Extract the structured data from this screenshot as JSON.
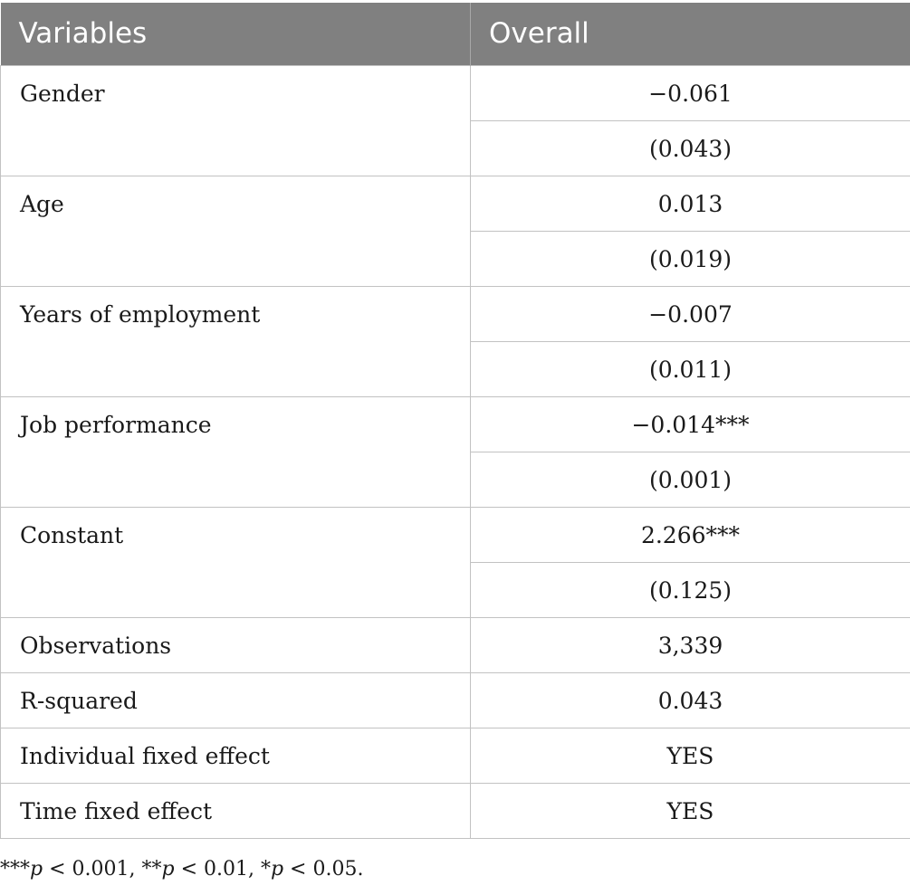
{
  "header": {
    "col1": "Variables",
    "col2": "Overall"
  },
  "rows": [
    {
      "label": "Gender",
      "coef": "−0.061",
      "se": "(0.043)"
    },
    {
      "label": "Age",
      "coef": "0.013",
      "se": "(0.019)"
    },
    {
      "label": "Years of employment",
      "coef": "−0.007",
      "se": "(0.011)"
    },
    {
      "label": "Job performance",
      "coef": "−0.014***",
      "se": "(0.001)"
    },
    {
      "label": "Constant",
      "coef": "2.266***",
      "se": "(0.125)"
    }
  ],
  "stats": [
    {
      "label": "Observations",
      "value": "3,339"
    },
    {
      "label": "R-squared",
      "value": "0.043"
    },
    {
      "label": "Individual fixed effect",
      "value": "YES"
    },
    {
      "label": "Time fixed effect",
      "value": "YES"
    }
  ],
  "footnote": {
    "p1_stars": "***",
    "p1_text": " < 0.001, ",
    "p2_stars": "**",
    "p2_text": " < 0.01, ",
    "p3_stars": "*",
    "p3_text": " < 0.05.",
    "p_symbol": "p"
  }
}
